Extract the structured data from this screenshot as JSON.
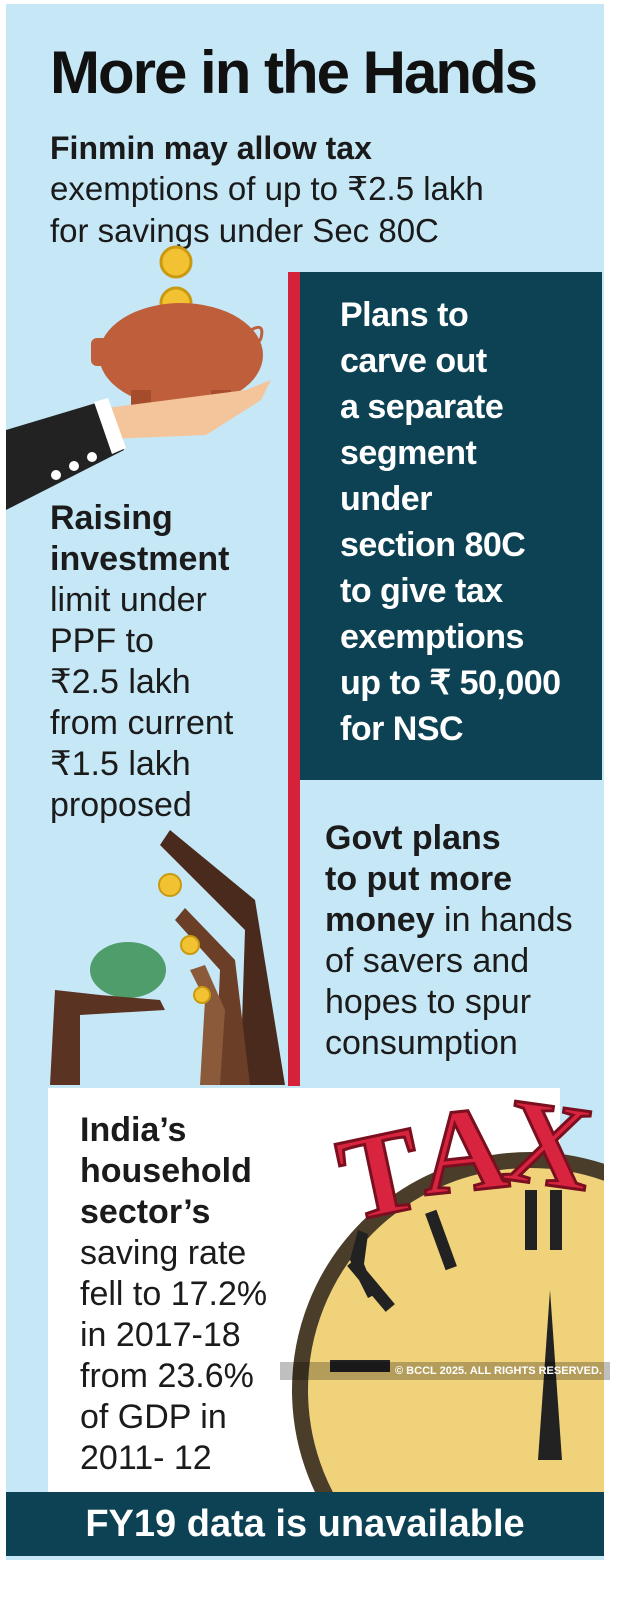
{
  "header": {
    "title": "More in the Hands",
    "subtitle_bold": "Finmin may allow tax",
    "subtitle_lines": [
      "exemptions of up to ₹2.5 lakh",
      "for savings under Sec 80C"
    ]
  },
  "nsc": {
    "lines": [
      "Plans to",
      "carve out",
      "a separate",
      "segment",
      "under",
      "section 80C",
      "to give tax",
      "exemptions",
      "up to ₹ 50,000",
      "for NSC"
    ]
  },
  "ppf": {
    "bold_lines": [
      "Raising",
      "investment"
    ],
    "lines": [
      "limit under",
      "PPF to",
      "₹2.5 lakh",
      "from current",
      "₹1.5 lakh",
      "proposed"
    ]
  },
  "govt": {
    "bold_lines": [
      "Govt plans",
      "to put more",
      "money"
    ],
    "lines": [
      "in hands",
      "of savers and",
      "hopes to spur",
      "consumption"
    ]
  },
  "india": {
    "bold_lines": [
      "India’s",
      "household",
      "sector’s"
    ],
    "lines": [
      "saving rate",
      "fell to 17.2%",
      "in 2017-18",
      "from 23.6%",
      "of GDP in",
      "2011- 12"
    ]
  },
  "copyright": "© BCCL 2025. ALL RIGHTS RESERVED.",
  "footer": "FY19 data is unavailable"
}
